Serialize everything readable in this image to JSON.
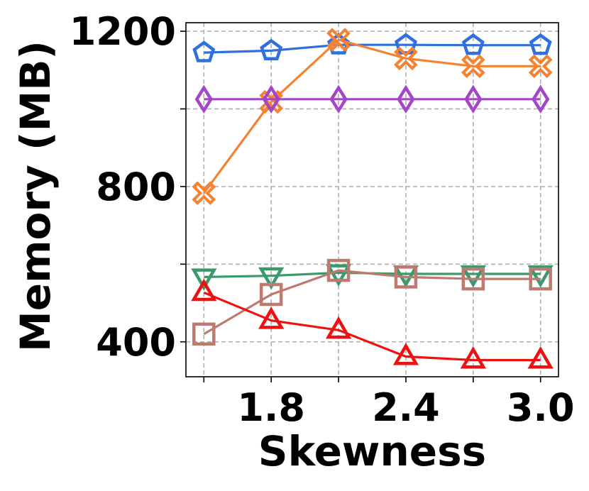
{
  "chart_data": {
    "type": "line",
    "xlabel": "Skewness",
    "ylabel": "Memory (MB)",
    "x": [
      1.5,
      1.8,
      2.1,
      2.4,
      2.7,
      3.0
    ],
    "xlim": [
      1.42,
      3.08
    ],
    "ylim": [
      310,
      1222
    ],
    "xticks": [
      1.5,
      1.8,
      2.1,
      2.4,
      2.7,
      3.0
    ],
    "xtick_labels": [
      "",
      "1.8",
      "",
      "2.4",
      "",
      "3.0"
    ],
    "yticks": [
      400,
      600,
      800,
      1000,
      1200
    ],
    "ytick_labels": [
      "400",
      "",
      "800",
      "",
      "1200"
    ],
    "grid": true,
    "series": [
      {
        "color": "#2f6fdf",
        "marker": "pentagon",
        "values": [
          1145,
          1150,
          1165,
          1165,
          1164,
          1164
        ]
      },
      {
        "color": "#f58231",
        "marker": "x-filled",
        "values": [
          783,
          1018,
          1178,
          1130,
          1110,
          1110
        ]
      },
      {
        "color": "#a347c8",
        "marker": "thin-diamond",
        "values": [
          1025,
          1025,
          1025,
          1025,
          1025,
          1025
        ]
      },
      {
        "color": "#3a9a6c",
        "marker": "triangle-down",
        "values": [
          567,
          570,
          578,
          575,
          575,
          575
        ]
      },
      {
        "color": "#bc7a70",
        "marker": "square",
        "values": [
          420,
          522,
          584,
          567,
          562,
          562
        ]
      },
      {
        "color": "#ee1111",
        "marker": "triangle-up",
        "values": [
          527,
          455,
          430,
          362,
          353,
          353
        ]
      }
    ]
  }
}
